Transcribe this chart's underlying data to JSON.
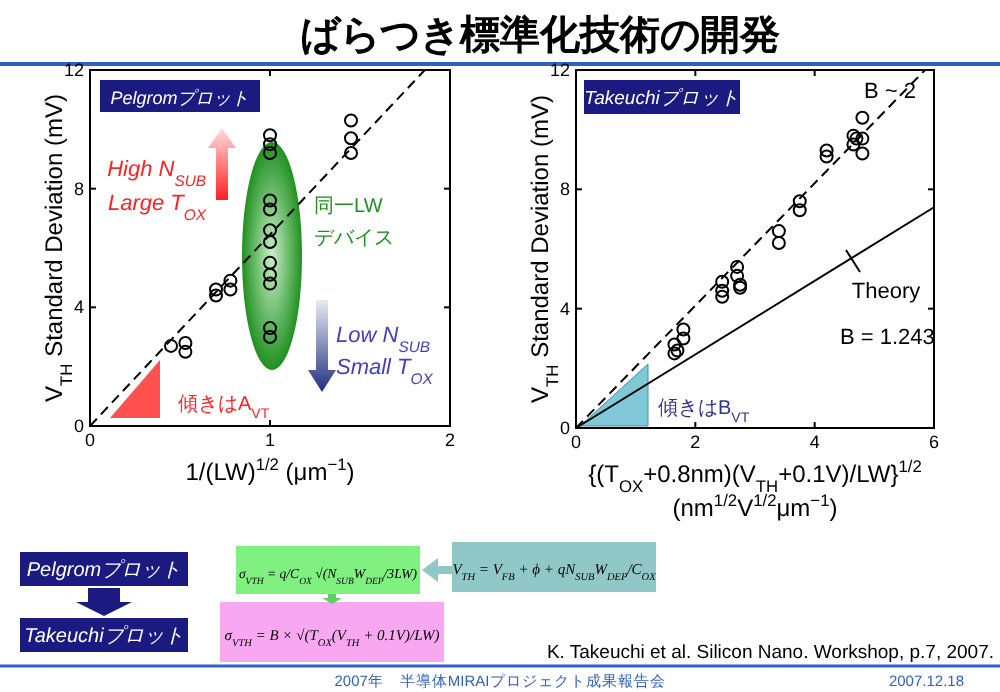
{
  "chart_data": [
    {
      "type": "other",
      "title": "ばらつき標準化技術の開発",
      "annotations": [
        "Pelgromプロット",
        "Takeuchiプロット",
        "σ$_{VTH}$ = q/C$_{OX}$ √(N$_{SUB}$W$_{DEP}$/3LW)",
        "V$_{TH}$ = V$_{FB}$ + ϕ + qN$_{SUB}$W$_{DEP}$/C$_{OX}$",
        "σ$_{VTH}$ = B × √(T$_{OX}$(V$_{TH}$ + 0.1V)/LW)",
        "K. Takeuchi et al. Silicon Nano. Workshop, p.7, 2007.",
        "2007年　半導体MIRAIプロジェクト成果報告会",
        "2007.12.18"
      ]
    },
    {
      "type": "scatter",
      "xlabel": "1/(LW)$^{1/2}$ (μm$^{−1}$)",
      "ylabel": "V$_{TH}$ Standard Deviation (mV)",
      "xlim": [
        0,
        2
      ],
      "ylim": [
        0,
        12
      ],
      "xticks": [
        0,
        1,
        2
      ],
      "yticks": [
        0,
        4,
        8,
        12
      ],
      "grid": false,
      "marker": "circle",
      "annotations": [
        "Pelgromプロット",
        "High N$_{SUB}$\nLarge T$_{OX}$",
        "同一LW\nデバイス",
        "Low N$_{SUB}$\nSmall T$_{OX}$",
        "傾きはA$_{VT}$"
      ],
      "series": [
        {
          "type": "scatter",
          "color": "#000000",
          "x": [
            0.45,
            0.53,
            0.53,
            0.7,
            0.7,
            0.78,
            0.78,
            1,
            1,
            1,
            1,
            1,
            1,
            1,
            1,
            1,
            1,
            1,
            1,
            1.45,
            1.45,
            1.45
          ],
          "values": [
            2.7,
            2.8,
            2.5,
            4.6,
            4.4,
            4.9,
            4.6,
            9.8,
            9.5,
            9.2,
            7.6,
            7.3,
            6.6,
            6.2,
            5.5,
            5.1,
            4.8,
            3.3,
            3.0,
            10.3,
            9.7,
            9.2
          ]
        },
        {
          "type": "line",
          "color": "#000000",
          "line_style": "dashed",
          "marker": "none",
          "x": [
            0,
            1.86
          ],
          "values": [
            0,
            12
          ]
        }
      ]
    },
    {
      "type": "scatter",
      "xlabel": "{(T$_{OX}$+0.8nm)(V$_{TH}$+0.1V)/LW}$^{1/2}$\n(nm$^{1/2}$V$^{1/2}$μm$^{−1}$)",
      "ylabel": "V$_{TH}$ Standard Deviation (mV)",
      "xlim": [
        0,
        6
      ],
      "ylim": [
        0,
        12
      ],
      "xticks": [
        0,
        2,
        4,
        6
      ],
      "yticks": [
        0,
        4,
        8,
        12
      ],
      "grid": false,
      "legend": "right",
      "marker": "circle",
      "annotations": [
        "Takeuchiプロット",
        "B ~ 2",
        "B = 1.243",
        "傾きはB$_{VT}$"
      ],
      "series": [
        {
          "type": "scatter",
          "color": "#000000",
          "x": [
            1.65,
            1.65,
            1.7,
            1.8,
            1.8,
            2.45,
            2.45,
            2.45,
            2.7,
            2.7,
            2.75,
            2.75,
            3.4,
            3.4,
            3.75,
            3.75,
            4.2,
            4.2,
            4.65,
            4.65,
            4.7,
            4.8,
            4.8,
            4.8
          ],
          "values": [
            2.5,
            2.8,
            2.6,
            3.3,
            3.0,
            4.9,
            4.6,
            4.4,
            5.4,
            5.1,
            4.8,
            4.7,
            6.6,
            6.2,
            7.6,
            7.3,
            9.3,
            9.1,
            9.8,
            9.5,
            9.7,
            10.4,
            9.7,
            9.2
          ]
        },
        {
          "type": "line",
          "color": "#000000",
          "line_style": "dashed",
          "marker": "none",
          "x": [
            0,
            5.85
          ],
          "values": [
            0,
            12
          ]
        },
        {
          "type": "line",
          "name": "Theory",
          "color": "#000000",
          "line_style": "solid",
          "marker": "none",
          "x": [
            0,
            6
          ],
          "values": [
            0,
            7.4
          ]
        }
      ]
    }
  ]
}
